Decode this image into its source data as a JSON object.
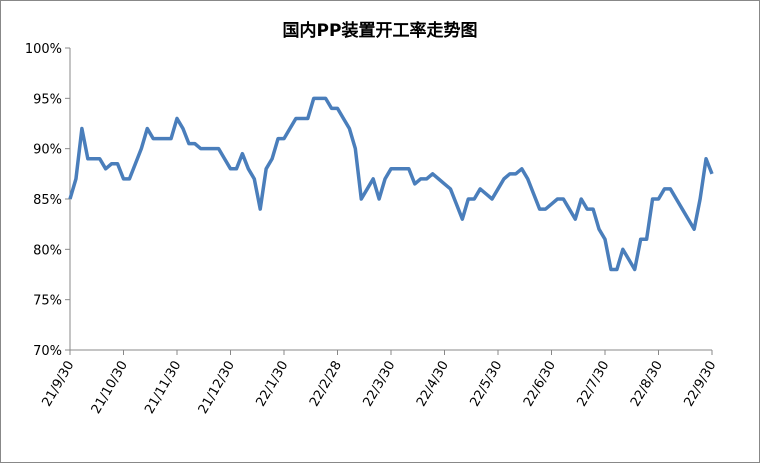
{
  "chart_data": {
    "type": "line",
    "title": "国内PP装置开工率走势图",
    "categories": [
      "21/9/30",
      null,
      null,
      null,
      null,
      null,
      null,
      null,
      null,
      "21/10/30",
      null,
      null,
      null,
      null,
      null,
      null,
      null,
      null,
      "21/11/30",
      null,
      null,
      null,
      null,
      null,
      null,
      null,
      null,
      "21/12/30",
      null,
      null,
      null,
      null,
      null,
      null,
      null,
      null,
      "22/1/30",
      null,
      null,
      null,
      null,
      null,
      null,
      null,
      null,
      "22/2/28",
      null,
      null,
      null,
      null,
      null,
      null,
      null,
      null,
      "22/3/30",
      null,
      null,
      null,
      null,
      null,
      null,
      null,
      null,
      "22/4/30",
      null,
      null,
      null,
      null,
      null,
      null,
      null,
      null,
      "22/5/30",
      null,
      null,
      null,
      null,
      null,
      null,
      null,
      null,
      "22/6/30",
      null,
      null,
      null,
      null,
      null,
      null,
      null,
      null,
      "22/7/30",
      null,
      null,
      null,
      null,
      null,
      null,
      null,
      null,
      "22/8/30",
      null,
      null,
      null,
      null,
      null,
      null,
      null,
      null,
      "22/9/30"
    ],
    "series": [
      {
        "name": "开工率",
        "color": "#4a7ebb",
        "values": [
          85,
          87,
          92,
          89,
          89,
          89,
          88,
          88.5,
          88.5,
          87,
          87,
          88.5,
          90,
          92,
          91,
          91,
          91,
          91,
          93,
          92,
          90.5,
          90.5,
          90,
          90,
          90,
          90,
          89,
          88,
          88,
          89.5,
          88,
          87,
          84,
          88,
          89,
          91,
          91,
          92,
          93,
          93,
          93,
          95,
          95,
          95,
          94,
          94,
          93,
          92,
          90,
          85,
          86,
          87,
          85,
          87,
          88,
          88,
          88,
          88,
          86.5,
          87,
          87,
          87.5,
          87,
          86.5,
          86,
          84.5,
          83,
          85,
          85,
          86,
          85.5,
          85,
          86,
          87,
          87.5,
          87.5,
          88,
          87,
          85.5,
          84,
          84,
          84.5,
          85,
          85,
          84,
          83,
          85,
          84,
          84,
          82,
          81,
          78,
          78,
          80,
          79,
          78,
          81,
          81,
          85,
          85,
          86,
          86,
          85,
          84,
          83,
          82,
          85,
          89,
          87.5
        ]
      }
    ],
    "ylim": [
      70,
      100
    ],
    "yticks": [
      {
        "value": 70,
        "label": "70%"
      },
      {
        "value": 75,
        "label": "75%"
      },
      {
        "value": 80,
        "label": "80%"
      },
      {
        "value": 85,
        "label": "85%"
      },
      {
        "value": 90,
        "label": "90%"
      },
      {
        "value": 95,
        "label": "95%"
      },
      {
        "value": 100,
        "label": "100%"
      }
    ],
    "grid": false
  }
}
